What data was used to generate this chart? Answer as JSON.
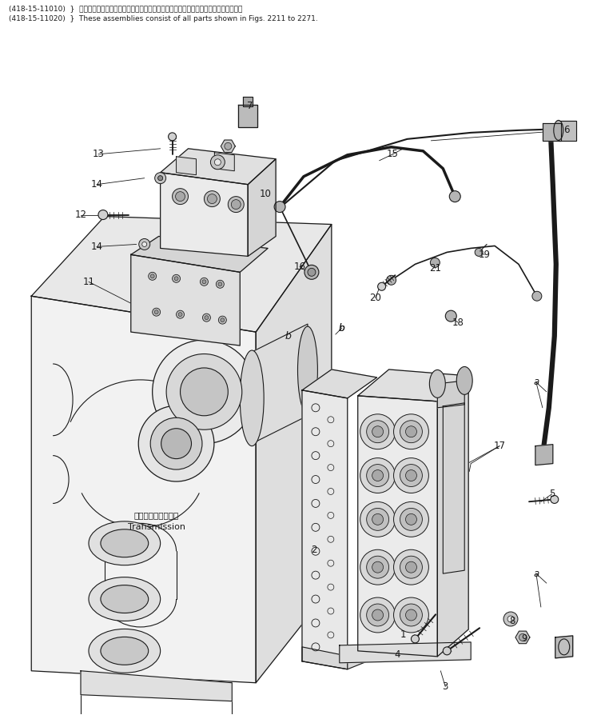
{
  "title_line1": "(418-15-11010)  }  これらのアセンブリの構成部品は第２２１１図から第２２７１図の部品を含みます。",
  "title_line2": "(418-15-11020)  }  These assemblies consist of all parts shown in Figs. 2211 to 2271.",
  "transmission_label_jp": "トランスミッション",
  "transmission_label_en": "Transmission",
  "bg_color": "#ffffff",
  "line_color": "#1a1a1a",
  "text_color": "#1a1a1a",
  "figsize": [
    7.42,
    8.94
  ],
  "dpi": 100
}
